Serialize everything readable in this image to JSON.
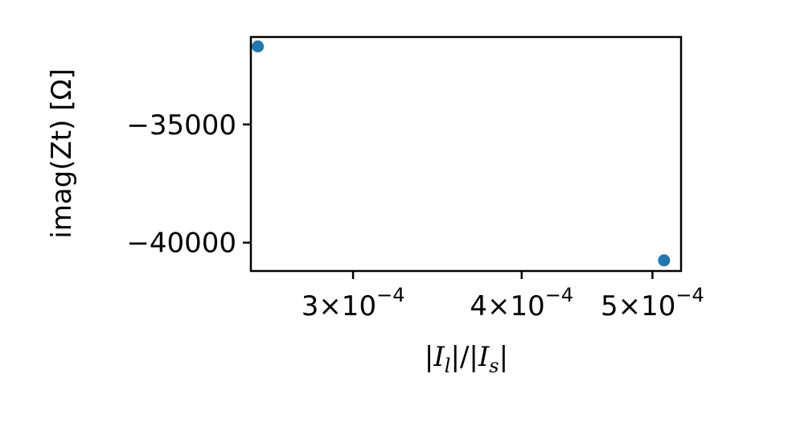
{
  "chart_data": {
    "type": "scatter",
    "xscale": "log",
    "xlim": [
      0.000252,
      0.000525
    ],
    "ylim": [
      -41200,
      -31300
    ],
    "x_ticks": [
      {
        "value": 0.0003,
        "mantissa": "3",
        "times": "×",
        "base": "10",
        "exponent": "−4"
      },
      {
        "value": 0.0004,
        "mantissa": "4",
        "times": "×",
        "base": "10",
        "exponent": "−4"
      },
      {
        "value": 0.0005,
        "mantissa": "5",
        "times": "×",
        "base": "10",
        "exponent": "−4"
      }
    ],
    "y_ticks": [
      {
        "value": -35000,
        "label": "−35000"
      },
      {
        "value": -40000,
        "label": "−40000"
      }
    ],
    "xlabel": {
      "bar1": "|",
      "I": "I",
      "l": "l",
      "bar2": "|/|",
      "s": "s",
      "bar3": "|"
    },
    "ylabel": "imag(Zt) [Ω]",
    "marker_color": "#1f77b4",
    "points": [
      {
        "x": 0.000255,
        "y": -31700
      },
      {
        "x": 0.00051,
        "y": -40750
      }
    ],
    "grid": false
  }
}
